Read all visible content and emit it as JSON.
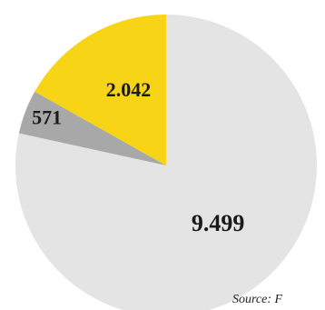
{
  "chart_data": {
    "type": "pie",
    "slices": [
      {
        "label": "9.499",
        "value": 9499,
        "color": "#e4e4e4"
      },
      {
        "label": "571",
        "value": 571,
        "color": "#a8a8a8"
      },
      {
        "label": "2.042",
        "value": 2042,
        "color": "#f7d415"
      }
    ],
    "start_angle": "12 o'clock",
    "direction": "clockwise",
    "legend": "none",
    "source": "Source: F"
  }
}
